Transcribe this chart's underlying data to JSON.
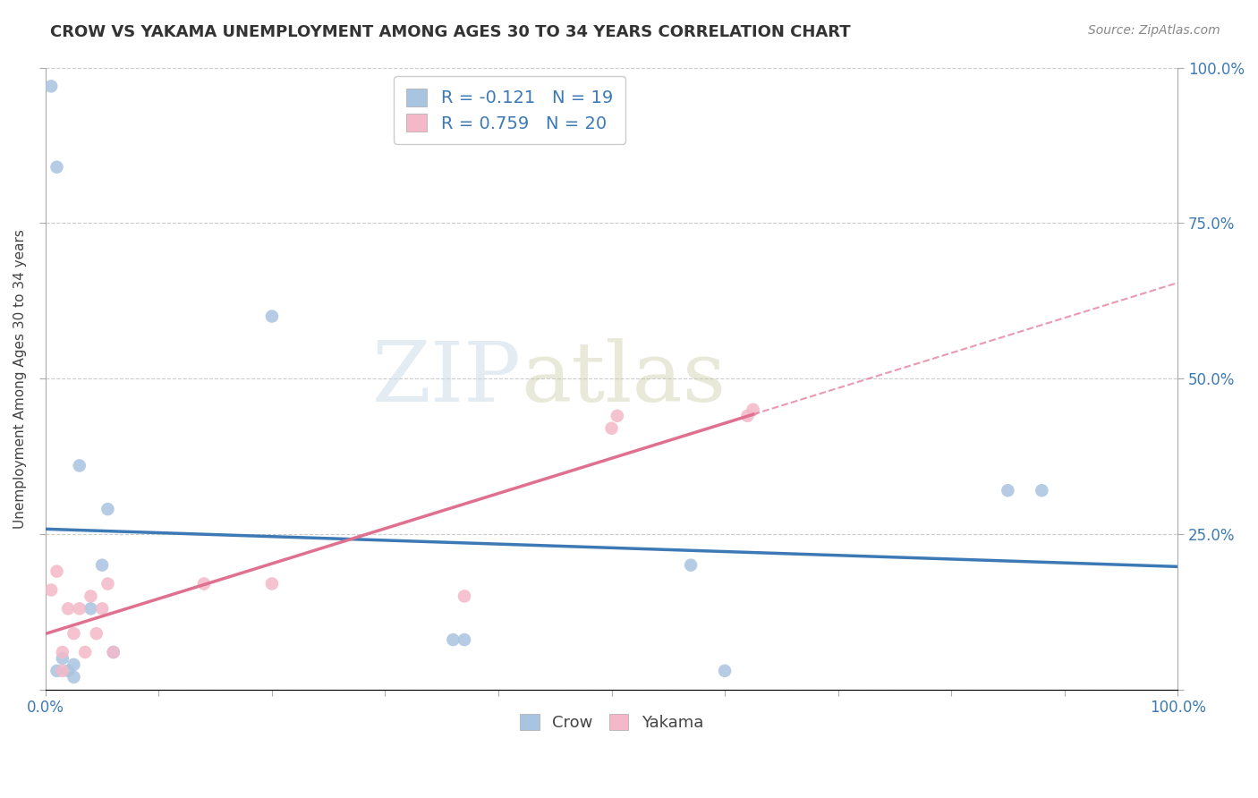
{
  "title": "CROW VS YAKAMA UNEMPLOYMENT AMONG AGES 30 TO 34 YEARS CORRELATION CHART",
  "source": "Source: ZipAtlas.com",
  "ylabel": "Unemployment Among Ages 30 to 34 years",
  "xlim": [
    0.0,
    1.0
  ],
  "ylim": [
    0.0,
    1.0
  ],
  "crow_color": "#a8c4e0",
  "yakama_color": "#f4b8c8",
  "crow_line_color": "#3d7ab5",
  "yakama_line_color": "#e07090",
  "crow_R": -0.121,
  "crow_N": 19,
  "yakama_R": 0.759,
  "yakama_N": 20,
  "crow_points_x": [
    0.005,
    0.01,
    0.01,
    0.015,
    0.02,
    0.025,
    0.025,
    0.03,
    0.04,
    0.05,
    0.055,
    0.06,
    0.2,
    0.36,
    0.37,
    0.57,
    0.6,
    0.85,
    0.88
  ],
  "crow_points_y": [
    0.97,
    0.84,
    0.03,
    0.05,
    0.03,
    0.04,
    0.02,
    0.36,
    0.13,
    0.2,
    0.29,
    0.06,
    0.6,
    0.08,
    0.08,
    0.2,
    0.03,
    0.32,
    0.32
  ],
  "yakama_points_x": [
    0.005,
    0.01,
    0.015,
    0.015,
    0.02,
    0.025,
    0.03,
    0.035,
    0.04,
    0.045,
    0.05,
    0.055,
    0.06,
    0.14,
    0.2,
    0.37,
    0.5,
    0.505,
    0.62,
    0.625
  ],
  "yakama_points_y": [
    0.16,
    0.19,
    0.06,
    0.03,
    0.13,
    0.09,
    0.13,
    0.06,
    0.15,
    0.09,
    0.13,
    0.17,
    0.06,
    0.17,
    0.17,
    0.15,
    0.42,
    0.44,
    0.44,
    0.45
  ],
  "watermark_zip": "ZIP",
  "watermark_atlas": "atlas",
  "grid_color": "#cccccc",
  "background_color": "#ffffff",
  "marker_size": 110,
  "y_ticks": [
    0.0,
    0.25,
    0.5,
    0.75,
    1.0
  ],
  "y_tick_labels_right": [
    "",
    "25.0%",
    "50.0%",
    "75.0%",
    "100.0%"
  ],
  "x_ticks": [
    0.0,
    0.1,
    0.2,
    0.3,
    0.4,
    0.5,
    0.6,
    0.7,
    0.8,
    0.9,
    1.0
  ],
  "x_tick_labels": [
    "0.0%",
    "",
    "",
    "",
    "",
    "",
    "",
    "",
    "",
    "",
    "100.0%"
  ]
}
